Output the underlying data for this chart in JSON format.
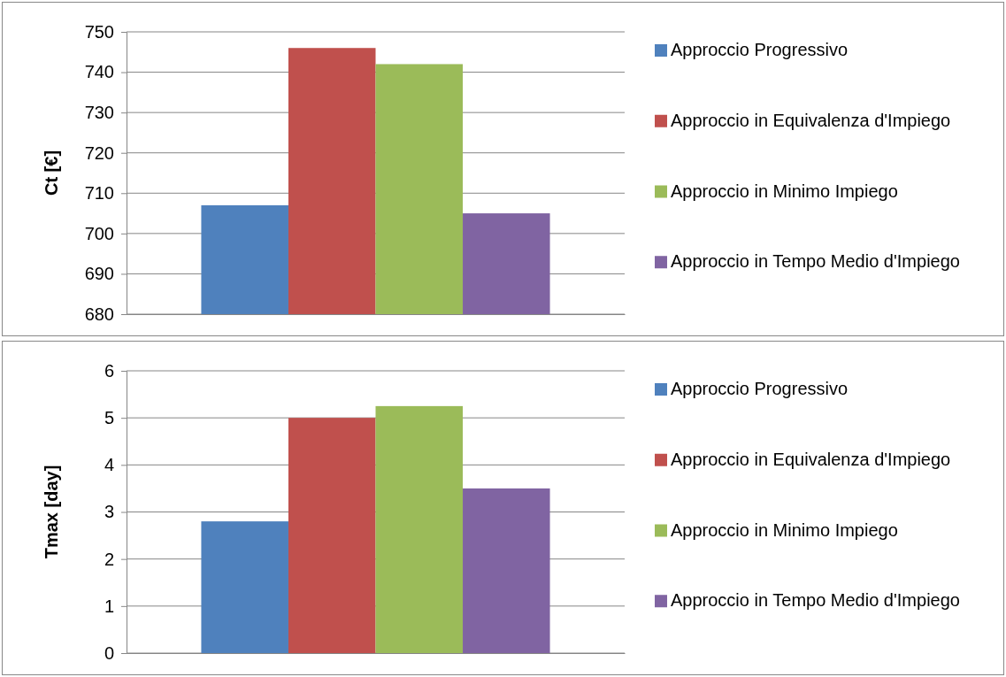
{
  "chart_data": [
    {
      "type": "bar",
      "ylabel": "Ct [€]",
      "categories": [
        null
      ],
      "ylim": [
        680,
        750
      ],
      "yticks": [
        680,
        690,
        700,
        710,
        720,
        730,
        740,
        750
      ],
      "grid": "y",
      "legend": "right",
      "series": [
        {
          "name": "Approccio Progressivo",
          "color": "#4f81bd",
          "values": [
            707
          ]
        },
        {
          "name": "Approccio in Equivalenza d'Impiego",
          "color": "#c0504d",
          "values": [
            746
          ]
        },
        {
          "name": "Approccio in Minimo Impiego",
          "color": "#9bbb59",
          "values": [
            742
          ]
        },
        {
          "name": "Approccio in Tempo Medio d'Impiego",
          "color": "#8064a2",
          "values": [
            705
          ]
        }
      ]
    },
    {
      "type": "bar",
      "ylabel": "Tmax [day]",
      "categories": [
        null
      ],
      "ylim": [
        0,
        6
      ],
      "yticks": [
        0,
        1,
        2,
        3,
        4,
        5,
        6
      ],
      "grid": "y",
      "legend": "right",
      "series": [
        {
          "name": "Approccio Progressivo",
          "color": "#4f81bd",
          "values": [
            2.8
          ]
        },
        {
          "name": "Approccio in Equivalenza d'Impiego",
          "color": "#c0504d",
          "values": [
            5.0
          ]
        },
        {
          "name": "Approccio in Minimo Impiego",
          "color": "#9bbb59",
          "values": [
            5.25
          ]
        },
        {
          "name": "Approccio in Tempo Medio d'Impiego",
          "color": "#8064a2",
          "values": [
            3.5
          ]
        }
      ]
    }
  ]
}
